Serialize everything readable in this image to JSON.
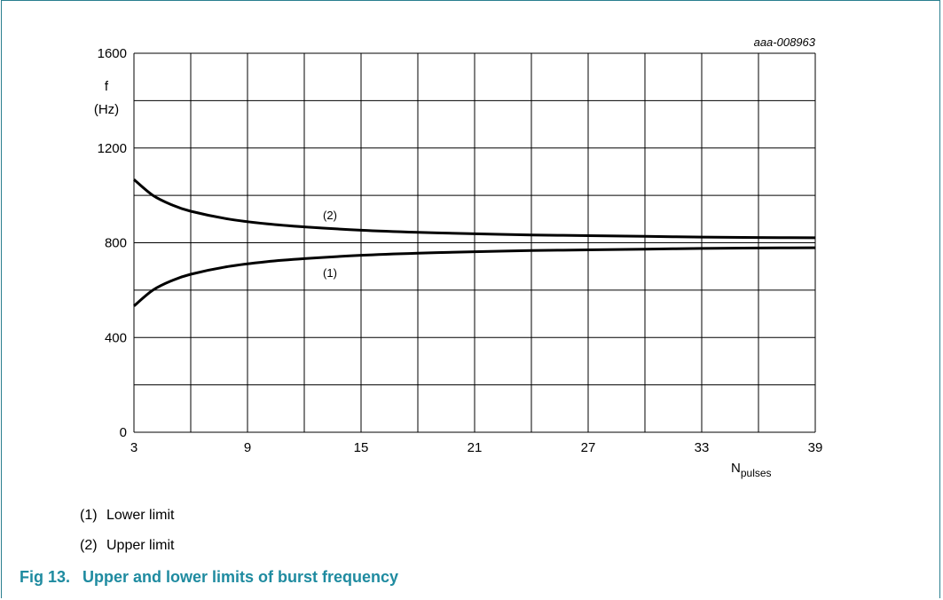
{
  "figure_id": "aaa-008963",
  "chart_data": {
    "type": "line",
    "ylabel_line1": "f",
    "ylabel_line2": "(Hz)",
    "xlabel_main": "N",
    "xlabel_sub": "pulses",
    "xlim": [
      3,
      39
    ],
    "ylim": [
      0,
      1600
    ],
    "xticks": [
      3,
      9,
      15,
      21,
      27,
      33,
      39
    ],
    "yticks": [
      0,
      400,
      800,
      1200,
      1600
    ],
    "grid": true,
    "series": [
      {
        "name": "(1)",
        "x": [
          3,
          4,
          5,
          6,
          8,
          10,
          12,
          15,
          18,
          21,
          24,
          27,
          30,
          33,
          36,
          39
        ],
        "values": [
          533,
          600,
          640,
          667,
          700,
          720,
          733,
          747,
          756,
          762,
          767,
          770,
          773,
          776,
          778,
          779
        ]
      },
      {
        "name": "(2)",
        "x": [
          3,
          4,
          5,
          6,
          8,
          10,
          12,
          15,
          18,
          21,
          24,
          27,
          30,
          33,
          36,
          39
        ],
        "values": [
          1067,
          1000,
          960,
          933,
          900,
          880,
          867,
          853,
          844,
          838,
          833,
          830,
          827,
          824,
          822,
          821
        ]
      }
    ]
  },
  "legend": [
    {
      "num": "(1)",
      "label": "Lower limit"
    },
    {
      "num": "(2)",
      "label": "Upper limit"
    }
  ],
  "caption": {
    "fig": "Fig 13.",
    "text": "Upper and lower limits of burst frequency"
  }
}
